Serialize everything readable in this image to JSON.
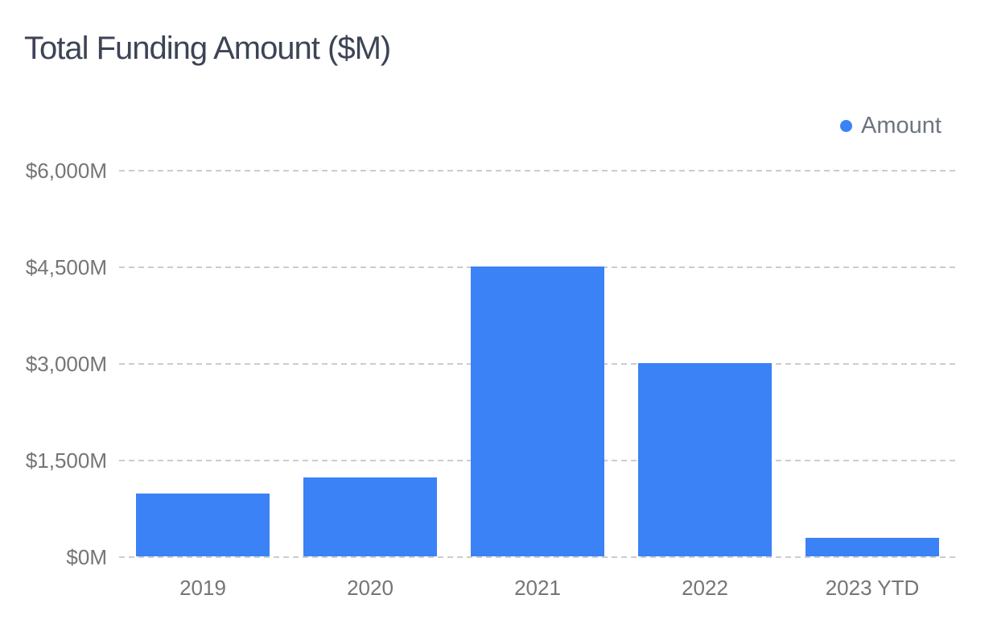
{
  "header": {
    "title": "Total Funding Amount ($M)"
  },
  "legend": {
    "label": "Amount",
    "marker": "circle-icon",
    "position": "top-right"
  },
  "chart_data": {
    "type": "bar",
    "title": "Total Funding Amount ($M)",
    "categories": [
      "2019",
      "2020",
      "2021",
      "2022",
      "2023 YTD"
    ],
    "series": [
      {
        "name": "Amount",
        "values": [
          975,
          1225,
          4500,
          3000,
          290
        ]
      }
    ],
    "xlabel": "",
    "ylabel": "",
    "ylim": [
      0,
      6000
    ],
    "ytick_values": [
      0,
      1500,
      3000,
      4500,
      6000
    ],
    "ytick_labels": [
      "$0M",
      "$1,500M",
      "$3,000M",
      "$4,500M",
      "$6,000M"
    ],
    "grid": "horizontal-dashed",
    "legend_position": "top-right",
    "colors": {
      "bar": "#3b82f6",
      "title": "#3d4455",
      "axis_label": "#757575",
      "legend_label": "#6e7480",
      "gridline": "#cccccc",
      "background": "#ffffff"
    }
  }
}
